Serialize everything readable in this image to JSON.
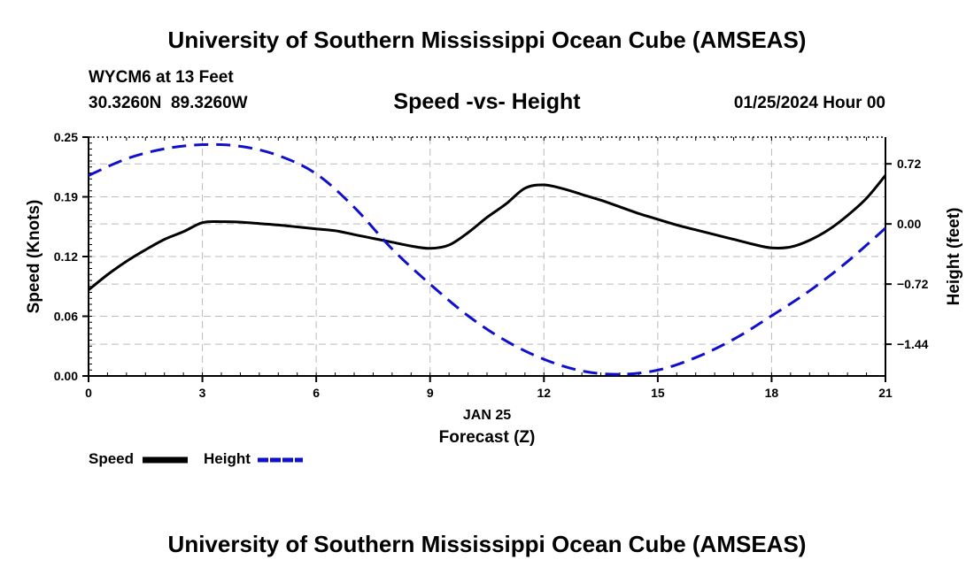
{
  "header": {
    "title": "University of Southern Mississippi Ocean Cube (AMSEAS)",
    "station": "WYCM6 at 13 Feet",
    "coords": "30.3260N  89.3260W",
    "subtitle": "Speed -vs- Height",
    "timestamp": "01/25/2024 Hour 00"
  },
  "footer": {
    "title": "University of Southern Mississippi Ocean Cube (AMSEAS)"
  },
  "legend": {
    "speed_label": "Speed",
    "height_label": "Height"
  },
  "colors": {
    "speed": "#000000",
    "height": "#1010cc",
    "grid": "#bbbbbb"
  },
  "chart_data": {
    "type": "line",
    "title": "Speed -vs- Height",
    "xlabel": "Forecast (Z)",
    "xsublabel": "JAN 25",
    "ylabel": "Speed (Knots)",
    "y2label": "Height (feet)",
    "xlim": [
      0,
      21
    ],
    "ylim": [
      0,
      0.25
    ],
    "y2lim": [
      -1.82,
      1.04
    ],
    "x_ticks": [
      0,
      3,
      6,
      9,
      12,
      15,
      18,
      21
    ],
    "x_tick_labels": [
      "0",
      "3",
      "6",
      "9",
      "12",
      "15",
      "18",
      "21"
    ],
    "y_ticks": [
      0,
      0.0625,
      0.125,
      0.1875,
      0.25
    ],
    "y_tick_labels": [
      "0.00",
      "0.06",
      "0.12",
      "0.19",
      "0.25"
    ],
    "y2_ticks": [
      -1.44,
      -0.72,
      0.0,
      0.72
    ],
    "y2_tick_labels": [
      "−1.44",
      "−0.72",
      "0.00",
      "0.72"
    ],
    "grid": true,
    "series": [
      {
        "name": "Speed",
        "axis": "left",
        "style": "solid",
        "x": [
          0,
          0.5,
          1,
          1.5,
          2,
          2.5,
          3,
          3.5,
          4,
          4.5,
          5,
          5.5,
          6,
          6.5,
          7,
          7.5,
          8,
          8.5,
          9,
          9.5,
          10,
          10.5,
          11,
          11.5,
          12,
          12.5,
          13,
          13.5,
          14,
          14.5,
          15,
          15.5,
          16,
          16.5,
          17,
          17.5,
          18,
          18.5,
          19,
          19.5,
          20,
          20.5,
          21
        ],
        "values": [
          0.09,
          0.106,
          0.12,
          0.132,
          0.143,
          0.151,
          0.1605,
          0.1615,
          0.161,
          0.1595,
          0.158,
          0.156,
          0.154,
          0.152,
          0.148,
          0.144,
          0.14,
          0.136,
          0.1335,
          0.137,
          0.15,
          0.166,
          0.18,
          0.1965,
          0.2,
          0.196,
          0.19,
          0.184,
          0.177,
          0.17,
          0.164,
          0.158,
          0.153,
          0.148,
          0.143,
          0.138,
          0.134,
          0.135,
          0.142,
          0.153,
          0.168,
          0.186,
          0.21
        ]
      },
      {
        "name": "Height",
        "axis": "right",
        "style": "dashed",
        "x": [
          0,
          1,
          2,
          3,
          4,
          5,
          6,
          7,
          8,
          9,
          10,
          11,
          12,
          13,
          14,
          15,
          16,
          17,
          18,
          19,
          20,
          21
        ],
        "values": [
          0.58,
          0.78,
          0.9,
          0.95,
          0.93,
          0.82,
          0.6,
          0.2,
          -0.3,
          -0.72,
          -1.1,
          -1.4,
          -1.62,
          -1.76,
          -1.8,
          -1.75,
          -1.6,
          -1.38,
          -1.1,
          -0.8,
          -0.45,
          -0.05
        ]
      }
    ]
  }
}
